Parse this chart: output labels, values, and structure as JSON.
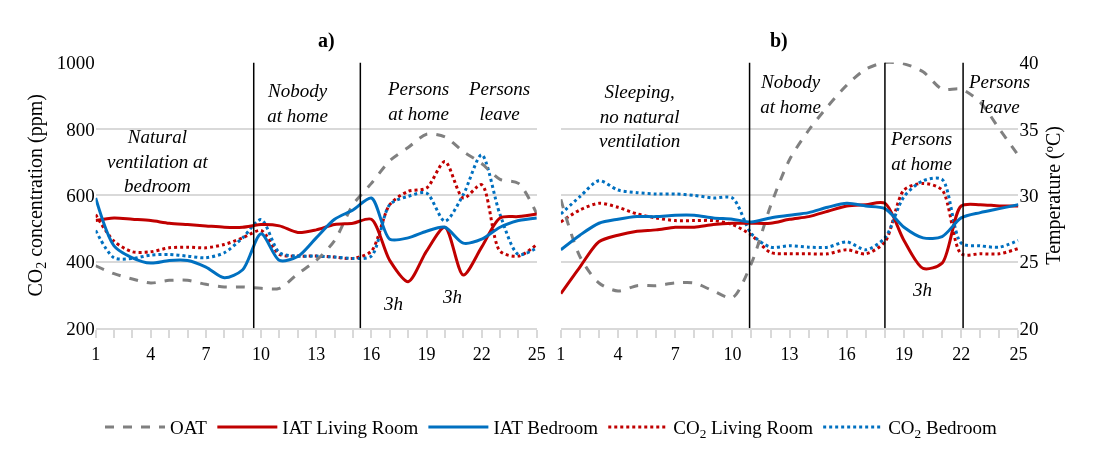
{
  "chart_data": [
    {
      "type": "line",
      "title": "a)",
      "ylabel": "CO$_{2}$ concentration (ppm)",
      "x": [
        1,
        2,
        3,
        4,
        5,
        6,
        7,
        8,
        9,
        10,
        11,
        12,
        13,
        14,
        15,
        16,
        17,
        18,
        19,
        20,
        21,
        22,
        23,
        24,
        25
      ],
      "xlim": [
        1,
        25
      ],
      "xticks": [
        1,
        {
          "value": 2,
          "label": null
        },
        {
          "value": 3,
          "label": null
        },
        4,
        {
          "value": 5,
          "label": null
        },
        {
          "value": 6,
          "label": null
        },
        7,
        {
          "value": 8,
          "label": null
        },
        {
          "value": 9,
          "label": null
        },
        10,
        {
          "value": 11,
          "label": null
        },
        {
          "value": 12,
          "label": null
        },
        13,
        {
          "value": 14,
          "label": null
        },
        {
          "value": 15,
          "label": null
        },
        16,
        {
          "value": 17,
          "label": null
        },
        {
          "value": 18,
          "label": null
        },
        19,
        {
          "value": 20,
          "label": null
        },
        {
          "value": 21,
          "label": null
        },
        22,
        {
          "value": 23,
          "label": null
        },
        {
          "value": 24,
          "label": null
        },
        25
      ],
      "ylim": [
        200,
        1000
      ],
      "yticks": [
        200,
        400,
        600,
        800,
        1000
      ],
      "y2lim": [
        20,
        40
      ],
      "grid": "y",
      "legend": "bottom",
      "marker": "none",
      "series": [
        {
          "name": "OAT",
          "color": "#808080",
          "line_style": "dashed",
          "axis": "y2",
          "values": [
            24.7,
            24.1,
            23.7,
            23.4,
            23.6,
            23.6,
            23.3,
            23.1,
            23.1,
            23.0,
            23.0,
            24.1,
            25.1,
            26.6,
            29.3,
            30.9,
            32.6,
            33.6,
            34.6,
            34.4,
            33.3,
            32.4,
            31.2,
            30.9,
            28.6
          ]
        },
        {
          "name": "IAT Living Room",
          "color": "#c00000",
          "line_style": "solid",
          "axis": "y2",
          "values": [
            28.1,
            28.3,
            28.2,
            28.1,
            27.9,
            27.8,
            27.7,
            27.6,
            27.6,
            27.8,
            27.7,
            27.2,
            27.4,
            27.8,
            27.9,
            28.2,
            25.1,
            23.5,
            25.8,
            27.6,
            24.0,
            26.1,
            28.3,
            28.4,
            28.6
          ]
        },
        {
          "name": "IAT Bedroom",
          "color": "#0070c0",
          "line_style": "solid",
          "axis": "y2",
          "values": [
            29.8,
            26.2,
            25.3,
            24.9,
            25.1,
            25.1,
            24.6,
            23.8,
            24.4,
            27.1,
            25.1,
            25.4,
            26.8,
            28.2,
            28.9,
            29.8,
            26.7,
            26.8,
            27.3,
            27.6,
            26.4,
            26.7,
            27.6,
            28.1,
            28.3
          ]
        },
        {
          "name": "CO$_{2}$ Living Room",
          "color": "#c00000",
          "line_style": "dotted",
          "values": [
            542,
            462,
            430,
            430,
            442,
            444,
            442,
            452,
            472,
            494,
            422,
            417,
            417,
            414,
            410,
            432,
            572,
            612,
            622,
            702,
            592,
            632,
            432,
            417,
            452
          ]
        },
        {
          "name": "CO$_{2}$ Bedroom",
          "color": "#0070c0",
          "line_style": "dotted",
          "values": [
            494,
            412,
            410,
            420,
            422,
            417,
            412,
            427,
            472,
            527,
            427,
            417,
            417,
            414,
            410,
            417,
            572,
            597,
            607,
            522,
            602,
            722,
            542,
            422,
            442
          ]
        }
      ],
      "ref_lines": [
        {
          "axis": "x",
          "value": 9.6,
          "color": "#000000"
        },
        {
          "axis": "x",
          "value": 15.4,
          "color": "#000000"
        }
      ],
      "annotations": [
        "Natural\nventilation at\nbedroom",
        "Nobody\nat home",
        "Persons\nat home",
        "Persons\nleave",
        "3h",
        "3h"
      ]
    },
    {
      "type": "line",
      "title": "b)",
      "y2label": "Temperature (ºC)",
      "x": [
        1,
        2,
        3,
        4,
        5,
        6,
        7,
        8,
        9,
        10,
        11,
        12,
        13,
        14,
        15,
        16,
        17,
        18,
        19,
        20,
        21,
        22,
        23,
        24,
        25
      ],
      "xlim": [
        1,
        25
      ],
      "xticks": [
        1,
        {
          "value": 2,
          "label": null
        },
        {
          "value": 3,
          "label": null
        },
        4,
        {
          "value": 5,
          "label": null
        },
        {
          "value": 6,
          "label": null
        },
        7,
        {
          "value": 8,
          "label": null
        },
        {
          "value": 9,
          "label": null
        },
        10,
        {
          "value": 11,
          "label": null
        },
        {
          "value": 12,
          "label": null
        },
        13,
        {
          "value": 14,
          "label": null
        },
        {
          "value": 15,
          "label": null
        },
        16,
        {
          "value": 17,
          "label": null
        },
        {
          "value": 18,
          "label": null
        },
        19,
        {
          "value": 20,
          "label": null
        },
        {
          "value": 21,
          "label": null
        },
        22,
        {
          "value": 23,
          "label": null
        },
        {
          "value": 24,
          "label": null
        },
        25
      ],
      "ylim": [
        200,
        1000
      ],
      "y2lim": [
        20,
        40
      ],
      "y2ticks": [
        20,
        25,
        30,
        35,
        40
      ],
      "grid": "y",
      "marker": "none",
      "series": [
        {
          "color": "#808080",
          "line_style": "dashed",
          "axis": "y2",
          "values": [
            29.7,
            25.4,
            23.4,
            22.8,
            23.2,
            23.2,
            23.4,
            23.4,
            22.8,
            22.3,
            24.9,
            29.2,
            32.7,
            34.9,
            36.7,
            38.3,
            39.5,
            40.0,
            39.9,
            39.3,
            38.0,
            38.0,
            37.0,
            35.0,
            33.0
          ]
        },
        {
          "color": "#c00000",
          "line_style": "solid",
          "axis": "y2",
          "values": [
            22.6,
            24.6,
            26.5,
            27.0,
            27.3,
            27.4,
            27.6,
            27.6,
            27.8,
            27.9,
            27.9,
            27.9,
            28.2,
            28.4,
            28.8,
            29.2,
            29.3,
            29.4,
            26.6,
            24.5,
            24.9,
            29.2,
            29.3,
            29.2,
            29.2
          ]
        },
        {
          "color": "#0070c0",
          "line_style": "solid",
          "axis": "y2",
          "values": [
            25.9,
            27.0,
            27.9,
            28.2,
            28.4,
            28.4,
            28.5,
            28.5,
            28.3,
            28.2,
            28.0,
            28.3,
            28.5,
            28.7,
            29.1,
            29.4,
            29.2,
            29.0,
            27.6,
            26.8,
            26.9,
            28.3,
            28.7,
            29.0,
            29.3
          ]
        },
        {
          "color": "#c00000",
          "line_style": "dotted",
          "values": [
            520,
            556,
            576,
            564,
            544,
            532,
            524,
            524,
            524,
            512,
            480,
            428,
            424,
            424,
            424,
            436,
            424,
            460,
            616,
            636,
            616,
            424,
            424,
            424,
            440
          ]
        },
        {
          "color": "#0070c0",
          "line_style": "dotted",
          "values": [
            544,
            596,
            644,
            616,
            608,
            604,
            604,
            600,
            592,
            592,
            484,
            444,
            448,
            444,
            444,
            460,
            436,
            472,
            596,
            644,
            648,
            456,
            448,
            444,
            464
          ]
        }
      ],
      "ref_lines": [
        {
          "axis": "x",
          "value": 10.9,
          "color": "#000000"
        },
        {
          "axis": "x",
          "value": 18.0,
          "color": "#000000"
        },
        {
          "axis": "x",
          "value": 22.1,
          "color": "#000000"
        }
      ],
      "annotations": [
        "Sleeping,\nno natural\nventilation",
        "Nobody\nat home",
        "Persons\nat home",
        "Persons\nleave",
        "3h"
      ]
    }
  ]
}
